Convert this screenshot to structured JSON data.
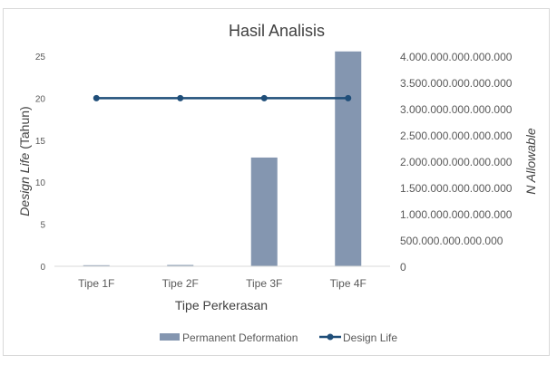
{
  "chart_data": {
    "type": "bar",
    "title": "Hasil Analisis",
    "xlabel": "Tipe Perkerasan",
    "ylabel_left_italic": "Design Life",
    "ylabel_left_rest": "(Tahun)",
    "ylabel_right": "N Allowable",
    "categories": [
      "Tipe 1F",
      "Tipe 2F",
      "Tipe 3F",
      "Tipe 4F"
    ],
    "left_axis": {
      "ylim": [
        0,
        25
      ],
      "ticks": [
        0,
        5,
        10,
        15,
        20,
        25
      ],
      "tick_labels": [
        "0",
        "5",
        "10",
        "15",
        "20",
        "25"
      ]
    },
    "right_axis": {
      "ylim": [
        0,
        4000000000000000
      ],
      "ticks": [
        0,
        500000000000000,
        1000000000000000,
        1500000000000000,
        2000000000000000,
        2500000000000000,
        3000000000000000,
        3500000000000000,
        4000000000000000
      ],
      "tick_labels": [
        "0",
        "500.000.000.000.000",
        "1.000.000.000.000.000",
        "1.500.000.000.000.000",
        "2.000.000.000.000.000",
        "2.500.000.000.000.000",
        "3.000.000.000.000.000",
        "3.500.000.000.000.000",
        "4.000.000.000.000.000"
      ]
    },
    "series": [
      {
        "name": "Permanent Deformation",
        "type": "bar",
        "axis": "right",
        "color": "#8496b0",
        "values": [
          20000000000000,
          25000000000000,
          2070000000000000,
          4090000000000000
        ]
      },
      {
        "name": "Design Life",
        "type": "line",
        "axis": "left",
        "color": "#1f4e79",
        "values": [
          20,
          20,
          20,
          20
        ]
      }
    ],
    "grid": false,
    "legend_position": "bottom"
  }
}
